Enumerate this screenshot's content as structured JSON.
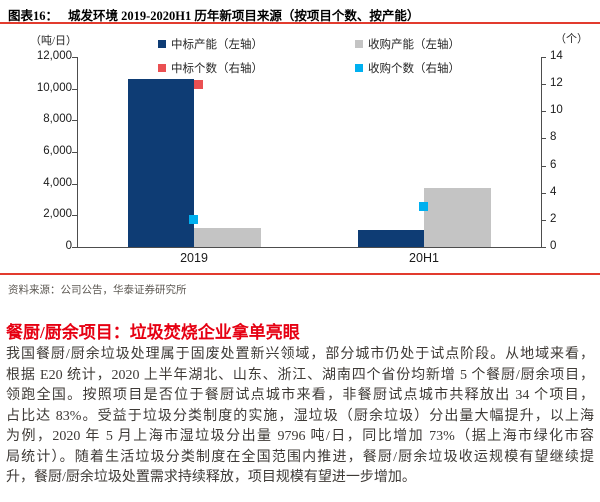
{
  "figure": {
    "label": "图表16：",
    "title": "城发环境 2019-2020H1 历年新项目来源（按项目个数、按产能）"
  },
  "chart_data": {
    "type": "bar",
    "categories": [
      "2019",
      "20H1"
    ],
    "series": [
      {
        "name": "中标产能（左轴）",
        "type": "bar",
        "axis": "left",
        "color": "#0e3c74",
        "values": [
          10600,
          1100
        ]
      },
      {
        "name": "收购产能（左轴）",
        "type": "bar",
        "axis": "left",
        "color": "#c4c4c4",
        "values": [
          1200,
          3700
        ]
      },
      {
        "name": "中标个数（右轴）",
        "type": "point",
        "axis": "right",
        "color": "#ea5052",
        "values": [
          12,
          null
        ]
      },
      {
        "name": "收购个数（右轴）",
        "type": "point",
        "axis": "right",
        "color": "#00b0f0",
        "values": [
          2,
          3
        ]
      }
    ],
    "left_axis": {
      "unit": "（吨/日）",
      "min": 0,
      "max": 12000,
      "ticks": [
        "0",
        "2,000",
        "4,000",
        "6,000",
        "8,000",
        "10,000",
        "12,000"
      ]
    },
    "right_axis": {
      "unit": "（个）",
      "min": 0,
      "max": 14,
      "ticks": [
        "0",
        "2",
        "4",
        "6",
        "8",
        "10",
        "12",
        "14"
      ]
    },
    "legend_position": "top",
    "grid": false
  },
  "source": "资料来源：公司公告，华泰证券研究所",
  "section": {
    "heading": "餐厨/厨余项目：垃圾焚烧企业拿单亮眼",
    "lines": [
      "我国餐厨/厨余垃圾处理属于固废处置新兴领域，部分城市仍处于试点阶段。从地域来看，",
      "根据 E20 统计，2020 上半年湖北、山东、浙江、湖南四个省份均新增 5 个餐厨/厨余项目，",
      "领跑全国。按照项目是否位于餐厨试点城市来看，非餐厨试点城市共释放出 34 个项目，",
      "占比达 83%。受益于垃圾分类制度的实施，湿垃圾（厨余垃圾）分出量大幅提升，以上海",
      "为例，2020 年 5 月上海市湿垃圾分出量 9796 吨/日，同比增加 73%（据上海市绿化市容",
      "局统计）。随着生活垃圾分类制度在全国范围内推进，餐厨/厨余垃圾收运规模有望继续提",
      "升，餐厨/厨余垃圾处置需求持续释放，项目规模有望进一步增加。"
    ]
  },
  "colors": {
    "rule_red": "#e23b2e",
    "heading_red": "#e60012",
    "axis_line": "#4d4d4d"
  }
}
